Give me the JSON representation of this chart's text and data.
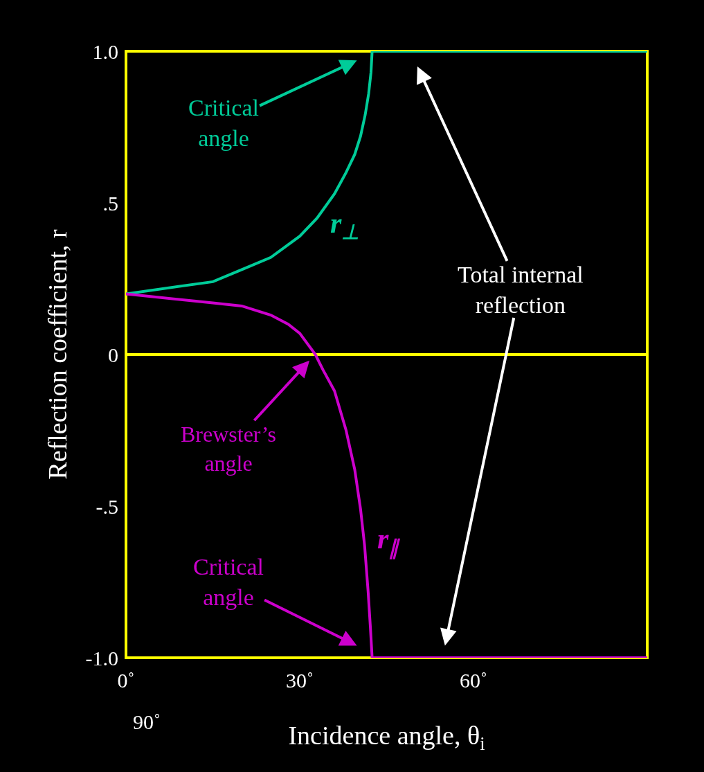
{
  "chart_data": {
    "type": "line",
    "xlabel": "Incidence angle, θ$_{i}$",
    "ylabel": "Reflection coefficient, r",
    "xlim": [
      0,
      90
    ],
    "ylim": [
      -1,
      1
    ],
    "xticks": [
      {
        "value": 0,
        "label": "0˚"
      },
      {
        "value": 30,
        "label": "30˚"
      },
      {
        "value": 60,
        "label": "60˚"
      }
    ],
    "yticks": [
      {
        "value": -1,
        "label": "-1.0"
      },
      {
        "value": -0.5,
        "label": "-.5"
      },
      0,
      {
        "value": 0.5,
        "label": ".5"
      },
      {
        "value": 1,
        "label": "1.0"
      }
    ],
    "grid": false,
    "legend": false,
    "marker": "none",
    "line_style": "solid",
    "ref_lines": [
      {
        "axis": "y",
        "value": 0,
        "color": "#ffff00"
      }
    ],
    "series": [
      {
        "name": "r$_{⊥}$",
        "color": "#00cc99",
        "x": [
          0,
          15,
          20,
          25,
          30,
          33,
          36,
          38,
          39.5,
          40.5,
          41.3,
          41.9,
          42.3,
          42.5,
          90
        ],
        "values": [
          0.2,
          0.24,
          0.28,
          0.32,
          0.39,
          0.45,
          0.53,
          0.6,
          0.66,
          0.72,
          0.79,
          0.86,
          0.93,
          1.0,
          1.0
        ]
      },
      {
        "name": "r$_{∥}$",
        "color": "#cc00cc",
        "x": [
          0,
          15,
          20,
          25,
          28,
          30,
          32.7,
          34,
          36,
          38,
          39.5,
          40.5,
          41.2,
          41.8,
          42.2,
          42.5,
          90
        ],
        "values": [
          0.2,
          0.17,
          0.16,
          0.13,
          0.1,
          0.07,
          0,
          -0.05,
          -0.12,
          -0.25,
          -0.38,
          -0.51,
          -0.63,
          -0.78,
          -0.9,
          -1.0,
          -1.0
        ]
      }
    ],
    "annotations": [
      "Critical\nangle",
      "Total internal\nreflection",
      "Brewster’s\nangle",
      "Critical\nangle",
      "90˚"
    ]
  }
}
